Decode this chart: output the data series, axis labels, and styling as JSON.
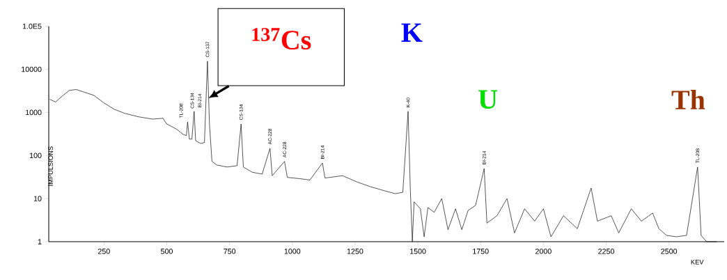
{
  "chart_data": {
    "type": "line",
    "xlabel": "KEV",
    "ylabel": "IMPULSIONS",
    "log": "y",
    "marker": "none",
    "line_style": "solid",
    "xlim": [
      30,
      2720
    ],
    "ylim": [
      1,
      100000
    ],
    "xticks": [
      250,
      500,
      750,
      1000,
      1250,
      1500,
      1750,
      2000,
      2250,
      2500
    ],
    "yticks": [
      1,
      10,
      100,
      1000,
      10000,
      {
        "value": 100000,
        "label": "1.0E5"
      }
    ],
    "x": [
      35,
      57,
      84,
      112,
      140,
      167,
      209,
      250,
      291,
      333,
      388,
      443,
      485,
      499,
      540,
      565,
      578,
      583,
      590,
      600,
      609,
      615,
      635,
      650,
      662,
      670,
      680,
      700,
      740,
      780,
      796,
      805,
      840,
      880,
      911,
      920,
      969,
      980,
      1030,
      1070,
      1120,
      1130,
      1200,
      1260,
      1310,
      1370,
      1410,
      1440,
      1461,
      1470,
      1478,
      1485,
      1510,
      1525,
      1540,
      1565,
      1595,
      1620,
      1650,
      1675,
      1700,
      1730,
      1764,
      1775,
      1815,
      1855,
      1885,
      1925,
      1965,
      2000,
      2030,
      2080,
      2135,
      2190,
      2215,
      2270,
      2300,
      2350,
      2390,
      2435,
      2460,
      2490,
      2530,
      2570,
      2614,
      2628,
      2650,
      2690
    ],
    "series": [
      {
        "color": "#000000",
        "values": [
          2000,
          1740,
          2400,
          3240,
          3400,
          3000,
          2500,
          1660,
          1180,
          950,
          790,
          700,
          730,
          545,
          405,
          310,
          290,
          600,
          240,
          240,
          1060,
          220,
          190,
          200,
          15500,
          545,
          73,
          60,
          54,
          58,
          540,
          54,
          41,
          37,
          147,
          34,
          73,
          31,
          29,
          27,
          67,
          30,
          34,
          24,
          19,
          15,
          13,
          14,
          1060,
          16,
          1,
          8.4,
          5.8,
          1.3,
          6.2,
          4.8,
          10,
          1.9,
          5.8,
          1.9,
          5.3,
          7,
          50,
          2.7,
          4,
          10,
          1.6,
          5.8,
          3,
          5.8,
          1.3,
          4,
          2,
          17.6,
          3,
          4,
          1.6,
          5.8,
          3,
          4.6,
          2,
          1.4,
          1.3,
          1.4,
          54,
          1.4,
          1,
          1
        ]
      }
    ],
    "annotations": [
      {
        "text": "TL-208",
        "x": 583,
        "y": 600
      },
      {
        "text": "CS-134",
        "x": 605,
        "y": 1000
      },
      {
        "text": "BI-214",
        "x": 609,
        "y": 1060
      },
      {
        "text": "CS-137",
        "x": 662,
        "y": 15500
      },
      {
        "text": "CS-134",
        "x": 796,
        "y": 540
      },
      {
        "text": "AC-228",
        "x": 911,
        "y": 147
      },
      {
        "text": "AC-228",
        "x": 969,
        "y": 73
      },
      {
        "text": "BI-214",
        "x": 1120,
        "y": 67
      },
      {
        "text": "K-40",
        "x": 1461,
        "y": 1060
      },
      {
        "text": "BI-214",
        "x": 1764,
        "y": 50
      },
      {
        "text": "TL-208",
        "x": 2614,
        "y": 54
      },
      {
        "text": "$^{137}$Cs",
        "x": 662,
        "y": 15500
      },
      {
        "text": "K",
        "x": 1461,
        "y": 1060
      },
      {
        "text": "U",
        "x": 1764,
        "y": 50
      },
      {
        "text": "Th",
        "x": 2614,
        "y": 54
      }
    ]
  }
}
